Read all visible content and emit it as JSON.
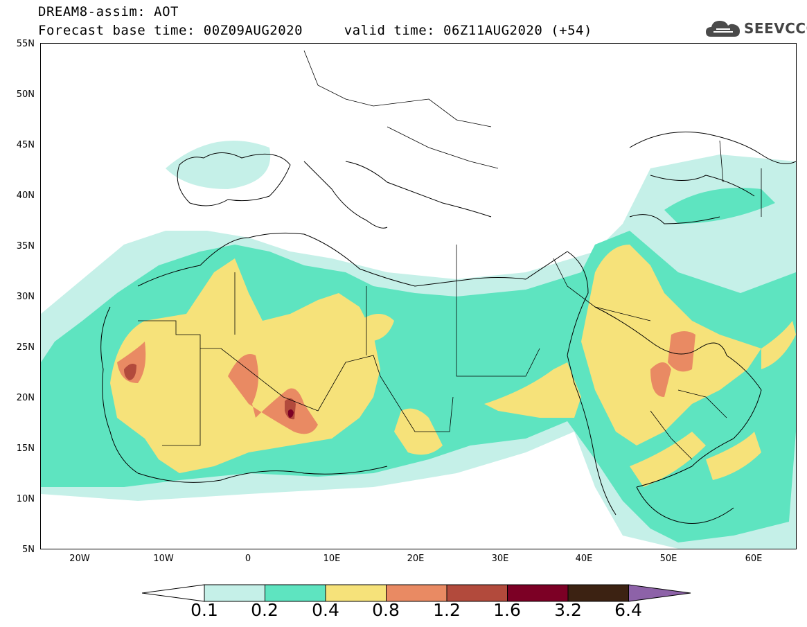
{
  "header": {
    "title_line1": "DREAM8-assim: AOT",
    "title_line2": "Forecast base time: 00Z09AUG2020     valid time: 06Z11AUG2020 (+54)"
  },
  "logo": {
    "text": "SEEVCCC",
    "icon": "cloud-icon"
  },
  "map": {
    "lat_labels": [
      "55N",
      "50N",
      "45N",
      "40N",
      "35N",
      "30N",
      "25N",
      "20N",
      "15N",
      "10N",
      "5N"
    ],
    "lon_labels": [
      "20W",
      "10W",
      "0",
      "10E",
      "20E",
      "30E",
      "40E",
      "50E",
      "60E"
    ]
  },
  "colorbar": {
    "labels": [
      "0.1",
      "0.2",
      "0.4",
      "0.8",
      "1.2",
      "1.6",
      "3.2",
      "6.4"
    ],
    "colors": [
      "#ffffff",
      "#c5f0e8",
      "#5ee4c0",
      "#f6e27a",
      "#e98a63",
      "#b24a3c",
      "#7c0025",
      "#3c2212",
      "#8d62a8"
    ]
  },
  "colors": {
    "c01": "#c5f0e8",
    "c02": "#5ee4c0",
    "c04": "#f6e27a",
    "c08": "#e98a63",
    "c12": "#b24a3c",
    "c16": "#7c0025"
  }
}
